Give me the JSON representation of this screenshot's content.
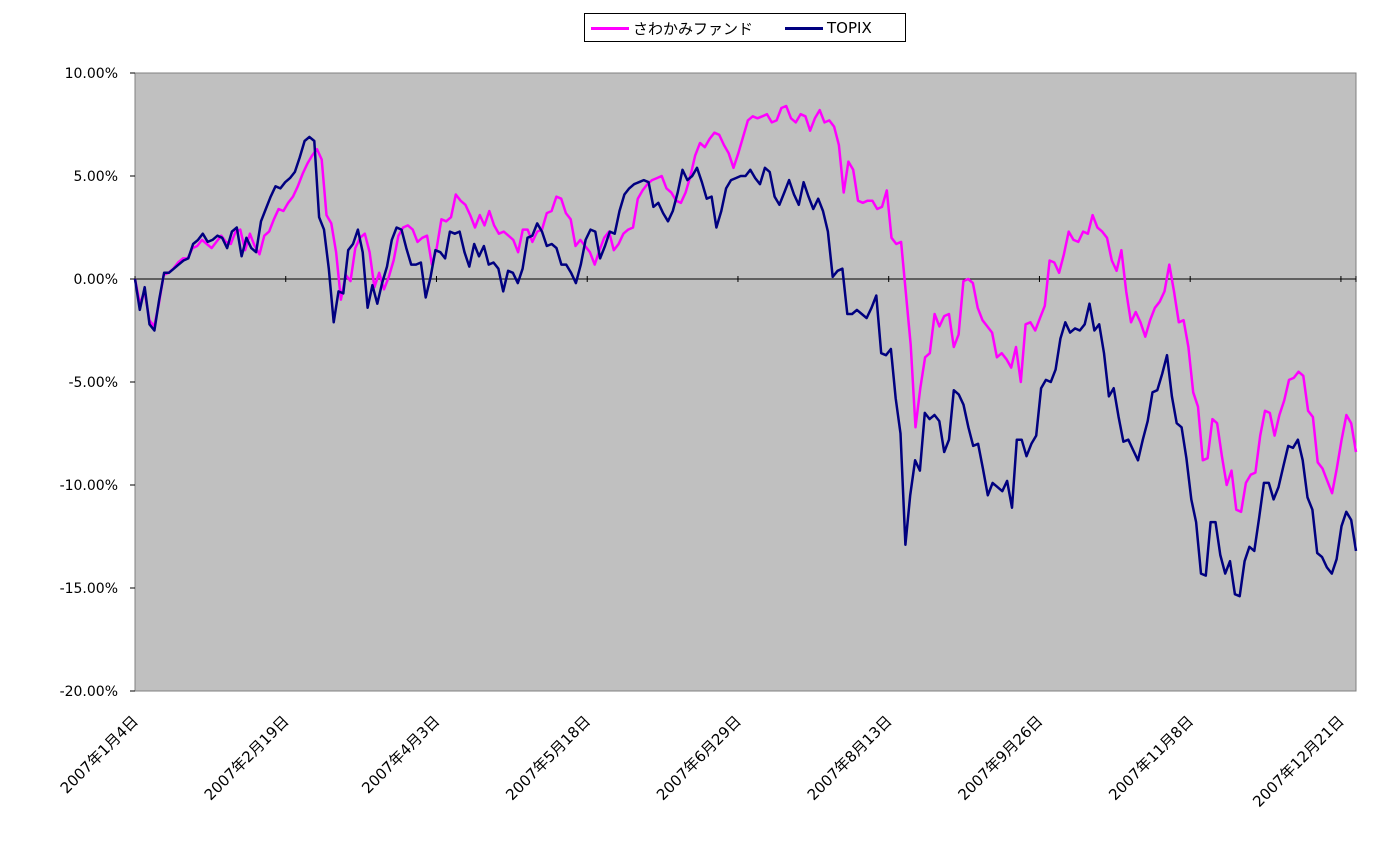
{
  "chart_data": {
    "type": "line",
    "title": "",
    "xlabel": "",
    "ylabel": "",
    "ylim": [
      -0.2,
      0.1
    ],
    "y_ticks": [
      "10.00%",
      "5.00%",
      "0.00%",
      "-5.00%",
      "-10.00%",
      "-15.00%",
      "-20.00%"
    ],
    "x_tick_labels": [
      "2007年1月4日",
      "2007年2月19日",
      "2007年4月3日",
      "2007年5月18日",
      "2007年6月29日",
      "2007年8月13日",
      "2007年9月26日",
      "2007年11月8日",
      "2007年12月21日"
    ],
    "x_tick_index": [
      0,
      30,
      60,
      90,
      120,
      150,
      180,
      210,
      240
    ],
    "plot_background": "#C0C0C0",
    "gridlines": false,
    "legend_position": "top-center",
    "series": [
      {
        "name": "さわかみファンド",
        "color": "#FF00FF",
        "values": [
          0,
          -1.2,
          -0.6,
          -2.0,
          -2.3,
          -1.2,
          0.2,
          0.3,
          0.5,
          0.8,
          1.0,
          1.0,
          1.5,
          1.6,
          1.9,
          1.7,
          1.5,
          1.8,
          2.1,
          1.8,
          1.7,
          2.3,
          2.4,
          1.4,
          2.2,
          1.6,
          1.2,
          2.1,
          2.3,
          2.9,
          3.4,
          3.3,
          3.7,
          4.0,
          4.5,
          5.1,
          5.6,
          6.0,
          6.3,
          5.8,
          3.1,
          2.7,
          1.3,
          -1.0,
          0.2,
          -0.1,
          1.5,
          2.0,
          2.2,
          1.3,
          -0.4,
          0.3,
          -0.5,
          0.1,
          0.9,
          2.1,
          2.5,
          2.6,
          2.4,
          1.8,
          2.0,
          2.1,
          0.7,
          1.5,
          2.9,
          2.8,
          3.0,
          4.1,
          3.8,
          3.6,
          3.1,
          2.5,
          3.1,
          2.6,
          3.3,
          2.6,
          2.2,
          2.3,
          2.1,
          1.9,
          1.3,
          2.4,
          2.4,
          1.8,
          2.3,
          2.4,
          3.2,
          3.3,
          4.0,
          3.9,
          3.2,
          2.9,
          1.6,
          1.9,
          1.6,
          1.3,
          0.7,
          1.4,
          2.0,
          2.3,
          1.4,
          1.7,
          2.2,
          2.4,
          2.5,
          3.9,
          4.3,
          4.6,
          4.8,
          4.9,
          5.0,
          4.4,
          4.2,
          3.8,
          3.7,
          4.2,
          5.0,
          6.0,
          6.6,
          6.4,
          6.8,
          7.1,
          7.0,
          6.5,
          6.1,
          5.4,
          6.1,
          6.9,
          7.7,
          7.9,
          7.8,
          7.9,
          8.0,
          7.6,
          7.7,
          8.3,
          8.4,
          7.8,
          7.6,
          8.0,
          7.9,
          7.2,
          7.8,
          8.2,
          7.6,
          7.7,
          7.4,
          6.5,
          4.2,
          5.7,
          5.3,
          3.8,
          3.7,
          3.8,
          3.8,
          3.4,
          3.5,
          4.3,
          2.0,
          1.7,
          1.8,
          -0.7,
          -3.2,
          -7.2,
          -5.3,
          -3.8,
          -3.6,
          -1.7,
          -2.3,
          -1.8,
          -1.7,
          -3.3,
          -2.7,
          -0.1,
          0.0,
          -0.2,
          -1.4,
          -2.0,
          -2.3,
          -2.6,
          -3.8,
          -3.6,
          -3.9,
          -4.3,
          -3.3,
          -5.0,
          -2.2,
          -2.1,
          -2.5,
          -1.9,
          -1.3,
          0.9,
          0.8,
          0.3,
          1.2,
          2.3,
          1.9,
          1.8,
          2.3,
          2.2,
          3.1,
          2.5,
          2.3,
          2.0,
          0.9,
          0.4,
          1.4,
          -0.6,
          -2.1,
          -1.6,
          -2.1,
          -2.8,
          -2.0,
          -1.4,
          -1.1,
          -0.6,
          0.7,
          -0.6,
          -2.1,
          -2.0,
          -3.3,
          -5.5,
          -6.2,
          -8.8,
          -8.7,
          -6.8,
          -7.0,
          -8.6,
          -10.0,
          -9.3,
          -11.2,
          -11.3,
          -9.9,
          -9.5,
          -9.4,
          -7.6,
          -6.4,
          -6.5,
          -7.6,
          -6.6,
          -5.9,
          -4.9,
          -4.8,
          -4.5,
          -4.7,
          -6.4,
          -6.7,
          -8.9,
          -9.2,
          -9.8,
          -10.4,
          -9.2,
          -7.8,
          -6.6,
          -7.0,
          -8.4
        ]
      },
      {
        "name": "TOPIX",
        "color": "#000080",
        "values": [
          0,
          -1.5,
          -0.4,
          -2.2,
          -2.5,
          -1.0,
          0.3,
          0.3,
          0.5,
          0.7,
          0.9,
          1.0,
          1.7,
          1.9,
          2.2,
          1.8,
          1.9,
          2.1,
          2.0,
          1.5,
          2.3,
          2.5,
          1.1,
          2.0,
          1.5,
          1.3,
          2.8,
          3.4,
          4.0,
          4.5,
          4.4,
          4.7,
          4.9,
          5.2,
          5.9,
          6.7,
          6.9,
          6.7,
          3.0,
          2.4,
          0.5,
          -2.1,
          -0.6,
          -0.7,
          1.4,
          1.7,
          2.4,
          1.3,
          -1.4,
          -0.3,
          -1.2,
          -0.2,
          0.6,
          1.9,
          2.5,
          2.4,
          1.5,
          0.7,
          0.7,
          0.8,
          -0.9,
          0.1,
          1.4,
          1.3,
          1.0,
          2.3,
          2.2,
          2.3,
          1.3,
          0.6,
          1.7,
          1.1,
          1.6,
          0.7,
          0.8,
          0.5,
          -0.6,
          0.4,
          0.3,
          -0.2,
          0.5,
          2.0,
          2.1,
          2.7,
          2.3,
          1.6,
          1.7,
          1.5,
          0.7,
          0.7,
          0.3,
          -0.2,
          0.7,
          1.9,
          2.4,
          2.3,
          1.0,
          1.6,
          2.3,
          2.2,
          3.3,
          4.1,
          4.4,
          4.6,
          4.7,
          4.8,
          4.7,
          3.5,
          3.7,
          3.2,
          2.8,
          3.3,
          4.2,
          5.3,
          4.8,
          5.0,
          5.4,
          4.7,
          3.9,
          4.0,
          2.5,
          3.3,
          4.4,
          4.8,
          4.9,
          5.0,
          5.0,
          5.3,
          4.9,
          4.6,
          5.4,
          5.2,
          4.0,
          3.6,
          4.2,
          4.8,
          4.1,
          3.6,
          4.7,
          4.0,
          3.4,
          3.9,
          3.3,
          2.3,
          0.1,
          0.4,
          0.5,
          -1.7,
          -1.7,
          -1.5,
          -1.7,
          -1.9,
          -1.4,
          -0.8,
          -3.6,
          -3.7,
          -3.4,
          -5.8,
          -7.5,
          -12.9,
          -10.5,
          -8.8,
          -9.3,
          -6.5,
          -6.8,
          -6.6,
          -6.9,
          -8.4,
          -7.8,
          -5.4,
          -5.6,
          -6.1,
          -7.2,
          -8.1,
          -8.0,
          -9.2,
          -10.5,
          -9.9,
          -10.1,
          -10.3,
          -9.8,
          -11.1,
          -7.8,
          -7.8,
          -8.6,
          -8.0,
          -7.6,
          -5.3,
          -4.9,
          -5.0,
          -4.4,
          -2.9,
          -2.1,
          -2.6,
          -2.4,
          -2.5,
          -2.2,
          -1.2,
          -2.5,
          -2.2,
          -3.6,
          -5.7,
          -5.3,
          -6.7,
          -7.9,
          -7.8,
          -8.3,
          -8.8,
          -7.8,
          -6.9,
          -5.5,
          -5.4,
          -4.6,
          -3.7,
          -5.7,
          -7.0,
          -7.2,
          -8.7,
          -10.7,
          -11.8,
          -14.3,
          -14.4,
          -11.8,
          -11.8,
          -13.4,
          -14.3,
          -13.7,
          -15.3,
          -15.4,
          -13.7,
          -13.0,
          -13.2,
          -11.6,
          -9.9,
          -9.9,
          -10.7,
          -10.1,
          -9.1,
          -8.1,
          -8.2,
          -7.8,
          -8.8,
          -10.6,
          -11.2,
          -13.3,
          -13.5,
          -14.0,
          -14.3,
          -13.6,
          -12.0,
          -11.3,
          -11.7,
          -13.2
        ]
      }
    ]
  }
}
